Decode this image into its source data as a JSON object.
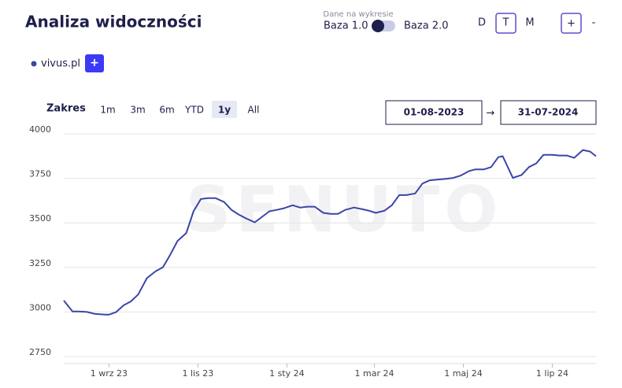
{
  "header": {
    "title": "Analiza widoczności",
    "data_label": "Dane na wykresie",
    "base_left": "Baza 1.0",
    "base_right": "Baza 2.0",
    "granularity": [
      "D",
      "T",
      "M"
    ],
    "zoom_in": "+",
    "zoom_out": "-"
  },
  "add_button": "+",
  "range": {
    "label": "Zakres",
    "options": [
      "1m",
      "3m",
      "6m",
      "YTD",
      "1y",
      "All"
    ],
    "from": "01-08-2023",
    "arrow": "→",
    "to": "31-07-2024"
  },
  "watermark": "SENUTO",
  "chart_data": {
    "type": "line",
    "x": [
      "2023-08-01",
      "2023-08-07",
      "2023-08-11",
      "2023-08-17",
      "2023-08-22",
      "2023-08-29",
      "2023-09-01",
      "2023-09-06",
      "2023-09-11",
      "2023-09-16",
      "2023-09-21",
      "2023-09-27",
      "2023-10-03",
      "2023-10-08",
      "2023-10-13",
      "2023-10-18",
      "2023-10-24",
      "2023-10-29",
      "2023-11-03",
      "2023-11-08",
      "2023-11-13",
      "2023-11-19",
      "2023-11-24",
      "2023-11-29",
      "2023-12-04",
      "2023-12-10",
      "2023-12-15",
      "2023-12-20",
      "2023-12-25",
      "2023-12-30",
      "2024-01-05",
      "2024-01-10",
      "2024-01-15",
      "2024-01-20",
      "2024-01-26",
      "2024-01-31",
      "2024-02-05",
      "2024-02-10",
      "2024-02-16",
      "2024-02-21",
      "2024-02-26",
      "2024-03-02",
      "2024-03-08",
      "2024-03-13",
      "2024-03-18",
      "2024-03-23",
      "2024-03-29",
      "2024-04-03",
      "2024-04-08",
      "2024-04-13",
      "2024-04-19",
      "2024-04-24",
      "2024-04-29",
      "2024-05-05",
      "2024-05-09",
      "2024-05-15",
      "2024-05-20",
      "2024-05-25",
      "2024-05-28",
      "2024-06-02",
      "2024-06-04",
      "2024-06-10",
      "2024-06-15",
      "2024-06-20",
      "2024-06-25",
      "2024-07-01",
      "2024-07-06",
      "2024-07-11",
      "2024-07-16",
      "2024-07-22",
      "2024-07-27",
      "2024-07-31"
    ],
    "series": [
      {
        "name": "vivus.pl",
        "color": "#3a46a6",
        "values": [
          3064,
          3003,
          3003,
          3000,
          2990,
          2985,
          2985,
          3000,
          3037,
          3059,
          3098,
          3190,
          3229,
          3251,
          3321,
          3399,
          3443,
          3565,
          3634,
          3639,
          3639,
          3617,
          3573,
          3547,
          3525,
          3503,
          3534,
          3565,
          3573,
          3582,
          3599,
          3586,
          3591,
          3591,
          3556,
          3551,
          3551,
          3573,
          3586,
          3578,
          3569,
          3556,
          3569,
          3599,
          3656,
          3656,
          3665,
          3721,
          3739,
          3743,
          3747,
          3752,
          3765,
          3791,
          3800,
          3800,
          3813,
          3869,
          3874,
          3787,
          3752,
          3769,
          3813,
          3834,
          3882,
          3882,
          3878,
          3878,
          3865,
          3909,
          3900,
          3874
        ]
      }
    ],
    "xlim": [
      "2023-08-01",
      "2024-07-31"
    ],
    "xticks": [
      {
        "value": "2023-09-01",
        "label": "1 wrz 23"
      },
      {
        "value": "2023-11-01",
        "label": "1 lis 23"
      },
      {
        "value": "2024-01-01",
        "label": "1 sty 24"
      },
      {
        "value": "2024-03-01",
        "label": "1 mar 24"
      },
      {
        "value": "2024-05-01",
        "label": "1 maj 24"
      },
      {
        "value": "2024-07-01",
        "label": "1 lip 24"
      }
    ],
    "ylim": [
      2750,
      4000
    ],
    "yticks": [
      2750,
      3000,
      3250,
      3500,
      3750,
      4000
    ],
    "grid": true
  }
}
